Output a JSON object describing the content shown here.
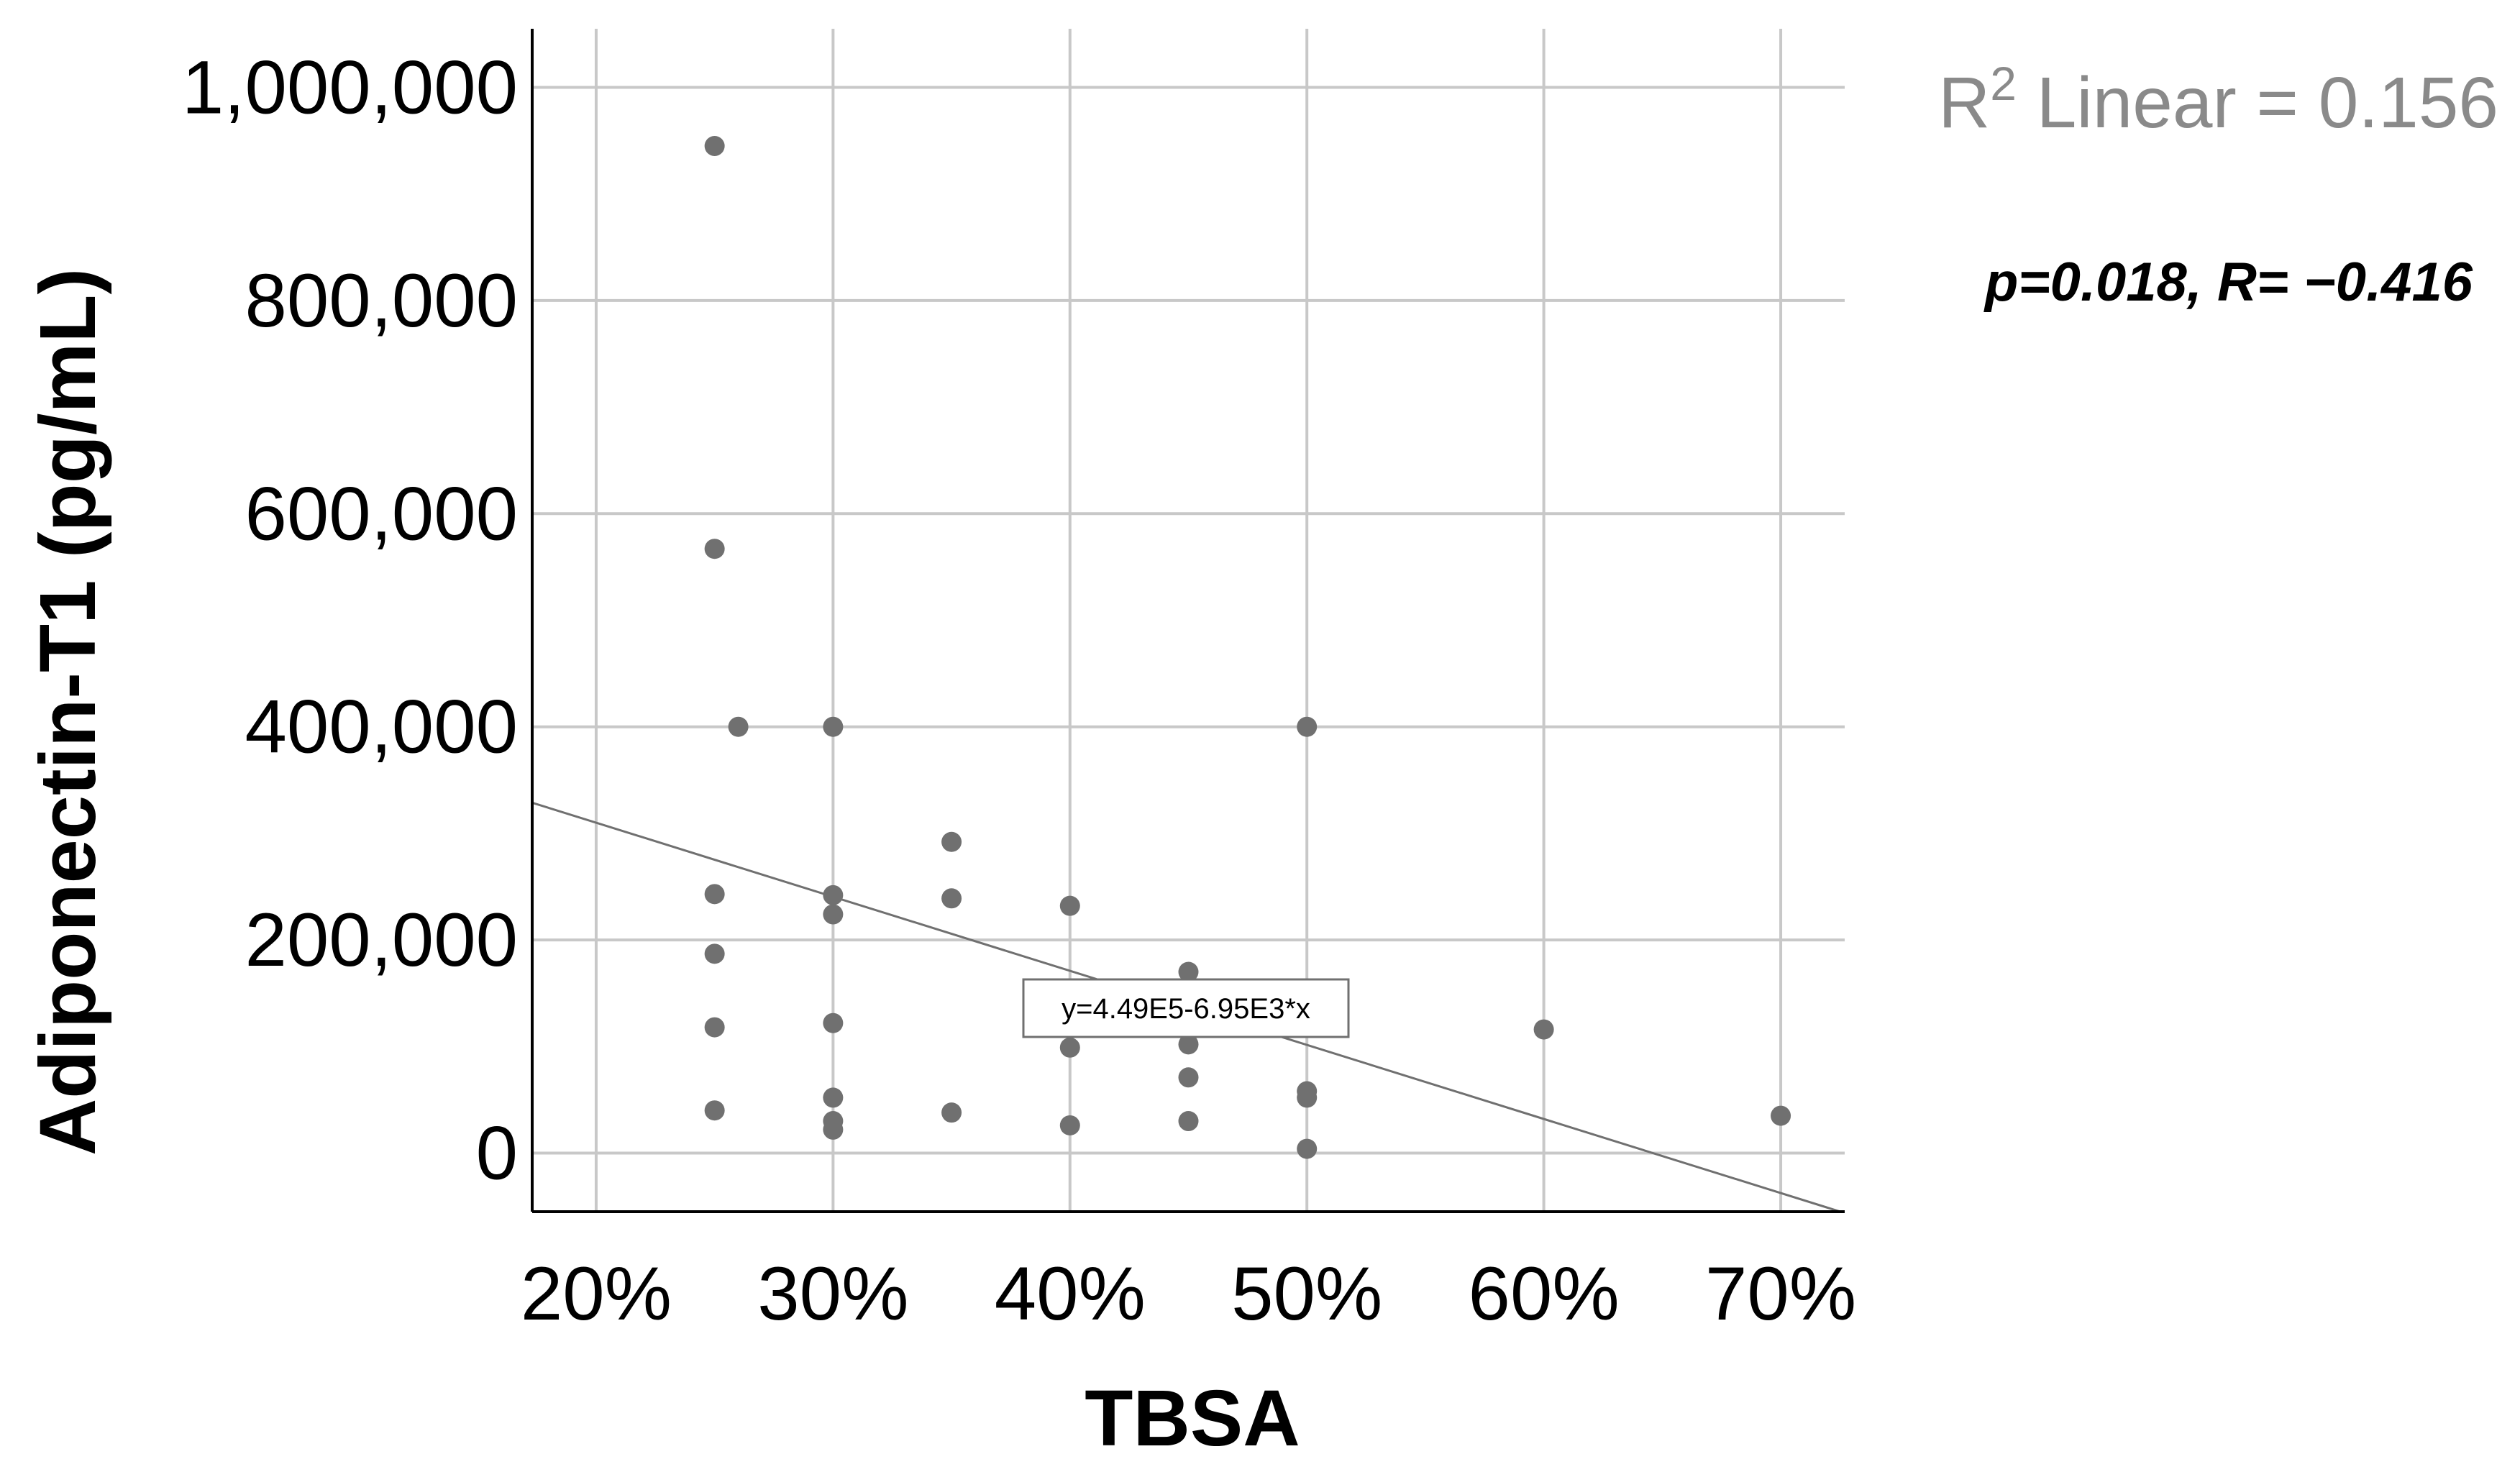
{
  "chart_data": {
    "type": "scatter",
    "title": "",
    "xlabel": "TBSA",
    "ylabel": "Adiponectin-T1 (pg/mL)",
    "xlim": [
      17.3,
      72.7
    ],
    "ylim": [
      -55000,
      1055000
    ],
    "x_ticks": [
      20,
      30,
      40,
      50,
      60,
      70
    ],
    "x_tick_labels": [
      "20%",
      "30%",
      "40%",
      "50%",
      "60%",
      "70%"
    ],
    "y_ticks": [
      0,
      200000,
      400000,
      600000,
      800000,
      1000000
    ],
    "y_tick_labels": [
      "0",
      "200,000",
      "400,000",
      "600,000",
      "800,000",
      "1,000,000"
    ],
    "grid": true,
    "series": [
      {
        "name": "Adiponectin-T1",
        "color": "#707070",
        "points": [
          {
            "x": 25,
            "y": 945000
          },
          {
            "x": 25,
            "y": 567000
          },
          {
            "x": 26,
            "y": 400000
          },
          {
            "x": 25,
            "y": 243000
          },
          {
            "x": 25,
            "y": 187000
          },
          {
            "x": 25,
            "y": 118000
          },
          {
            "x": 25,
            "y": 40000
          },
          {
            "x": 30,
            "y": 400000
          },
          {
            "x": 30,
            "y": 242000
          },
          {
            "x": 30,
            "y": 224000
          },
          {
            "x": 30,
            "y": 122000
          },
          {
            "x": 30,
            "y": 52000
          },
          {
            "x": 30,
            "y": 30000
          },
          {
            "x": 30,
            "y": 22000
          },
          {
            "x": 35,
            "y": 292000
          },
          {
            "x": 35,
            "y": 239000
          },
          {
            "x": 35,
            "y": 38000
          },
          {
            "x": 40,
            "y": 232000
          },
          {
            "x": 40,
            "y": 99000
          },
          {
            "x": 40,
            "y": 26000
          },
          {
            "x": 45,
            "y": 170000
          },
          {
            "x": 45,
            "y": 102000
          },
          {
            "x": 45,
            "y": 71000
          },
          {
            "x": 45,
            "y": 30000
          },
          {
            "x": 50,
            "y": 400000
          },
          {
            "x": 50,
            "y": 58000
          },
          {
            "x": 50,
            "y": 52000
          },
          {
            "x": 50,
            "y": 4000
          },
          {
            "x": 60,
            "y": 116000
          },
          {
            "x": 70,
            "y": 35000
          }
        ]
      }
    ],
    "fit_line": {
      "intercept": 449000,
      "slope": -6950,
      "equation_label": "y=4.49E5-6.95E3*x",
      "color": "#707070"
    },
    "annotations": {
      "r2_prefix": "R",
      "r2_superscript": "2",
      "r2_text": " Linear = 0.156",
      "stats_text": "p=0.018, R= −0.416"
    }
  }
}
